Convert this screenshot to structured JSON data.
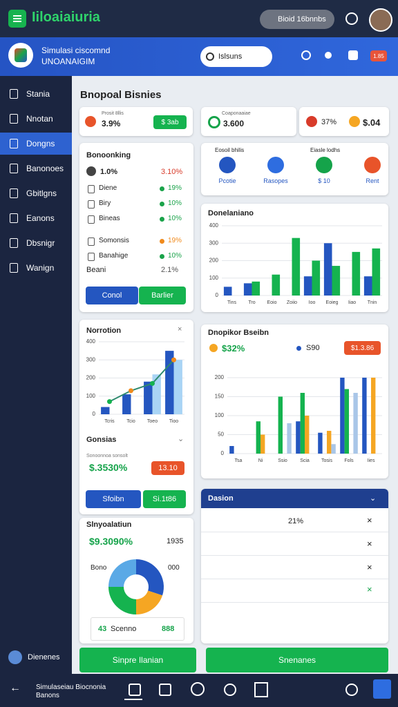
{
  "top_bar": {
    "app_name": "Iiloaiaiuria",
    "search": "Bioid 16bnnbs"
  },
  "header": {
    "line1": "Simulasi ciscomnd",
    "line2": "UNOANAIGIM",
    "search": "Islsuns",
    "badge": "1.85"
  },
  "sidebar": {
    "items": [
      "Stania",
      "Nnotan",
      "Dongns",
      "Banonoes",
      "Gbitlgns",
      "Eanons",
      "Dbsnigr",
      "Wanign"
    ],
    "active": 2,
    "user": "Dienenes"
  },
  "page_title": "Bnopoal Bisnies",
  "stats": [
    {
      "label": "Prosit 8llis",
      "value": "3.9%",
      "button": "$ 3ab"
    },
    {
      "label": "Coaponaaiae",
      "value": "3.600"
    },
    {
      "value": "37%",
      "value2": "$.04"
    }
  ],
  "booking": {
    "title": "Bonoonking",
    "headline": "1.0%",
    "headline_value": "3.10%",
    "rows": [
      {
        "label": "Diene",
        "value": "19%",
        "color": "#1aa34a"
      },
      {
        "label": "Biry",
        "value": "10%",
        "color": "#1aa34a"
      },
      {
        "label": "Bineas",
        "value": "10%",
        "color": "#1aa34a"
      },
      {
        "label": "Somonsis",
        "value": "19%",
        "color": "#f08a1c"
      },
      {
        "label": "Banahige",
        "value": "10%",
        "color": "#1aa34a"
      }
    ],
    "footer_label": "Beani",
    "footer_value": "2.1%",
    "buttons": [
      "Conol",
      "Barlier"
    ]
  },
  "quick_icons": {
    "headers": [
      "Eosoil bhilis",
      "Eiasle lodhs"
    ],
    "labels": [
      "Pcotie",
      "Rasopes",
      "$ 10",
      "Rent"
    ]
  },
  "chart_a": {
    "type": "bar",
    "title": "Donelaniano",
    "categories": [
      "Tins",
      "Tro",
      "Eoio",
      "Zoiio",
      "Ioo",
      "Eoieg",
      "Iiao",
      "Tnin"
    ],
    "series": [
      {
        "color": "#2456c0",
        "values": [
          50,
          70,
          null,
          null,
          110,
          300,
          null,
          110
        ]
      },
      {
        "color": "#15b34f",
        "values": [
          null,
          80,
          120,
          330,
          200,
          170,
          250,
          270
        ]
      }
    ],
    "ylim": [
      0,
      400
    ],
    "yticks": [
      0,
      100,
      200,
      300,
      400
    ]
  },
  "chart_b": {
    "type": "bar",
    "title": "Norrotion",
    "categories": [
      "Tcris",
      "Tcio",
      "Toeo",
      "Tioo"
    ],
    "series": [
      {
        "color": "#2456c0",
        "values": [
          40,
          110,
          180,
          350
        ]
      },
      {
        "color": "#a9d4f5",
        "values": [
          null,
          null,
          220,
          300
        ]
      }
    ],
    "line": {
      "color": "#2e8a6e",
      "values": [
        70,
        130,
        170,
        300
      ]
    },
    "ylim": [
      0,
      400
    ],
    "yticks": [
      0,
      100,
      200,
      300,
      400
    ]
  },
  "gonsias": {
    "title": "Gonsias",
    "caption": "Sonoonnoa sonsolt",
    "value": "$.3530%",
    "button": "13.10",
    "buttons": [
      "Sfoibn",
      "Si.1t86"
    ]
  },
  "simulasi": {
    "title": "Slnyoalatiun",
    "value": "$9.3090%",
    "value2": "1935",
    "left_label": "Bono",
    "right_label": "000",
    "footer_label": "Scenno",
    "footer_icon": "43",
    "footer_value": "888",
    "donut": {
      "type": "pie",
      "values": [
        30,
        20,
        25,
        25
      ],
      "colors": [
        "#2456c0",
        "#f5a623",
        "#15b34f",
        "#5aa9e6"
      ]
    }
  },
  "chart_c": {
    "type": "bar",
    "title": "Dnopikor Bseibn",
    "value": "$32%",
    "value2": "S90",
    "button": "$1.3.86",
    "categories": [
      "Tsa",
      "Ni",
      "Ssio",
      "Scia",
      "Tosis",
      "Fols",
      "Iies"
    ],
    "series": [
      {
        "color": "#2456c0",
        "values": [
          20,
          null,
          null,
          85,
          55,
          200,
          200
        ]
      },
      {
        "color": "#15b34f",
        "values": [
          null,
          85,
          150,
          160,
          null,
          170,
          null
        ]
      },
      {
        "color": "#f5a623",
        "values": [
          null,
          50,
          null,
          100,
          60,
          null,
          200
        ]
      },
      {
        "color": "#a9c6e8",
        "values": [
          null,
          null,
          80,
          null,
          25,
          160,
          null
        ]
      }
    ],
    "ylim": [
      0,
      200
    ],
    "yticks": [
      0,
      50,
      100,
      150,
      200
    ]
  },
  "table": {
    "title": "Dasion",
    "value": "21%"
  },
  "actions": [
    "Sinpre Ilanian",
    "Snenanes"
  ],
  "bottom_nav": {
    "title": "Simulaseiau Biocnonia",
    "subtitle": "Banons"
  }
}
